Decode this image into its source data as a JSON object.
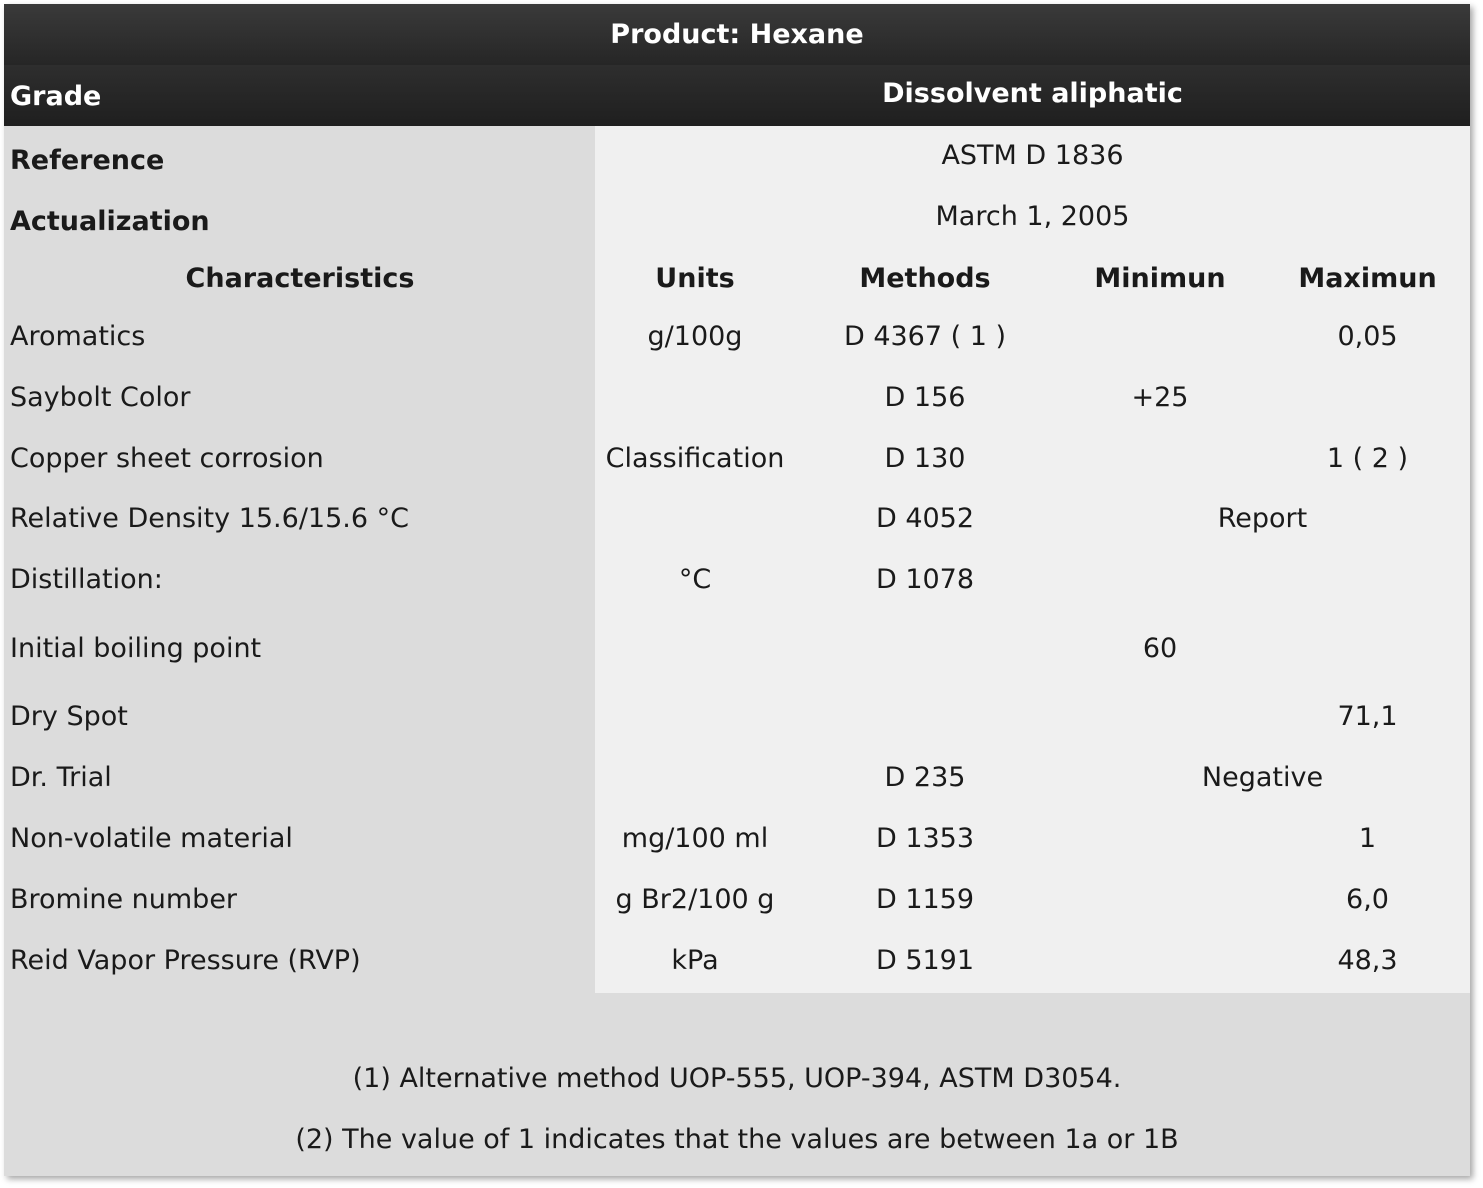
{
  "title": "Product: Hexane",
  "grade": {
    "label": "Grade",
    "value": "Dissolvent aliphatic"
  },
  "reference": {
    "label": "Reference",
    "value": "ASTM D 1836"
  },
  "actualization": {
    "label": "Actualization",
    "value": "March 1, 2005"
  },
  "headers": {
    "characteristics": "Characteristics",
    "units": "Units",
    "methods": "Methods",
    "minimum": "Minimun",
    "maximum": "Maximun"
  },
  "rows": [
    {
      "characteristic": "Aromatics",
      "units": "g/100g",
      "method": "D 4367 ( 1 )",
      "min": "",
      "max": "0,05"
    },
    {
      "characteristic": "Saybolt Color",
      "units": "",
      "method": "D 156",
      "min": "+25",
      "max": ""
    },
    {
      "characteristic": "Copper sheet corrosion",
      "units": "Classification",
      "method": "D 130",
      "min": "",
      "max": "1 ( 2 )"
    },
    {
      "characteristic": "Relative Density 15.6/15.6 °C",
      "units": "",
      "method": "D 4052",
      "span": "Report"
    },
    {
      "characteristic": "Distillation:",
      "units": "°C",
      "method": "D 1078",
      "min": "",
      "max": ""
    },
    {
      "characteristic": "Initial boiling point",
      "units": "",
      "method": "",
      "min": "60",
      "max": ""
    },
    {
      "characteristic": "Dry Spot",
      "units": "",
      "method": "",
      "min": "",
      "max": "71,1"
    },
    {
      "characteristic": "Dr. Trial",
      "units": "",
      "method": "D 235",
      "span": "Negative"
    },
    {
      "characteristic": "Non-volatile material",
      "units": "mg/100 ml",
      "method": "D 1353",
      "min": "",
      "max": "1"
    },
    {
      "characteristic": "Bromine number",
      "units": "g Br2/100 g",
      "method": "D 1159",
      "min": "",
      "max": "6,0"
    },
    {
      "characteristic": "Reid Vapor Pressure (RVP)",
      "units": "kPa",
      "method": "D 5191",
      "min": "",
      "max": "48,3"
    }
  ],
  "footnotes": [
    "(1) Alternative method UOP-555, UOP-394, ASTM D3054.",
    "(2) The value of 1 indicates that the values are between 1a or 1B"
  ]
}
